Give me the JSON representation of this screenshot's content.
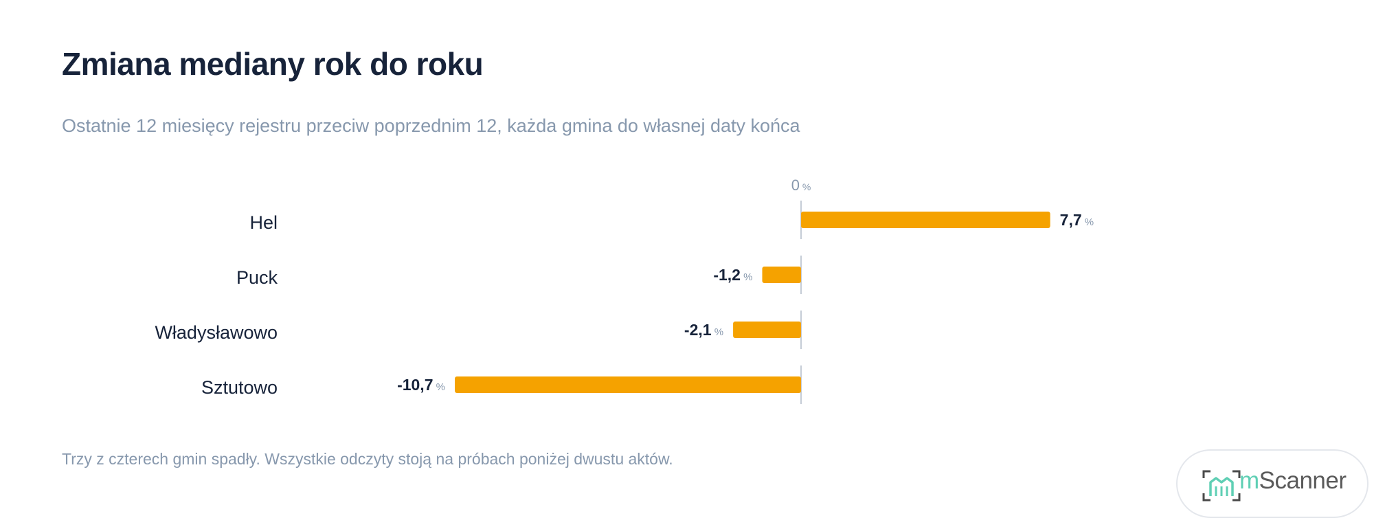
{
  "title": "Zmiana mediany rok do roku",
  "subtitle": "Ostatnie 12 miesięcy rejestru przeciw poprzednim 12, każda gmina do własnej daty końca",
  "footnote": "Trzy z czterech gmin spadły. Wszystkie odczyty stoją na próbach poniżej dwustu aktów.",
  "brand": {
    "prefix": "m",
    "name": "Scanner"
  },
  "colors": {
    "bar": "#f5a200",
    "axis": "#c5ccd6",
    "label": "#17233a",
    "muted": "#8798ad"
  },
  "chart_data": {
    "type": "bar",
    "orientation": "horizontal",
    "categories": [
      "Hel",
      "Puck",
      "Władysławowo",
      "Sztutowo"
    ],
    "values": [
      7.7,
      -1.2,
      -2.1,
      -10.7
    ],
    "value_labels": [
      "7,7",
      "-1,2",
      "-2,1",
      "-10,7"
    ],
    "unit": "%",
    "zero_label": "0",
    "xlim": [
      -10.7,
      7.7
    ]
  }
}
